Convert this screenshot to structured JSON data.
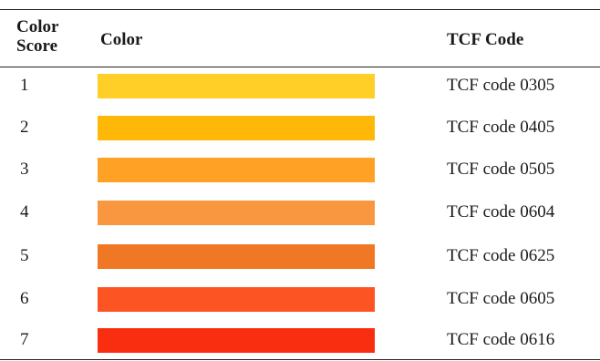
{
  "table": {
    "headers": {
      "score_line1": "Color",
      "score_line2": "Score",
      "color": "Color",
      "code": "TCF Code"
    },
    "rows": [
      {
        "score": "1",
        "swatch_color": "#FFCE27",
        "code": "TCF code 0305"
      },
      {
        "score": "2",
        "swatch_color": "#FFB808",
        "code": "TCF code 0405"
      },
      {
        "score": "3",
        "swatch_color": "#FFA125",
        "code": "TCF code 0505"
      },
      {
        "score": "4",
        "swatch_color": "#F99640",
        "code": "TCF code 0604"
      },
      {
        "score": "5",
        "swatch_color": "#F07824",
        "code": "TCF code 0625"
      },
      {
        "score": "6",
        "swatch_color": "#FD5424",
        "code": "TCF code 0605"
      },
      {
        "score": "7",
        "swatch_color": "#F92E10",
        "code": "TCF code 0616"
      }
    ]
  }
}
